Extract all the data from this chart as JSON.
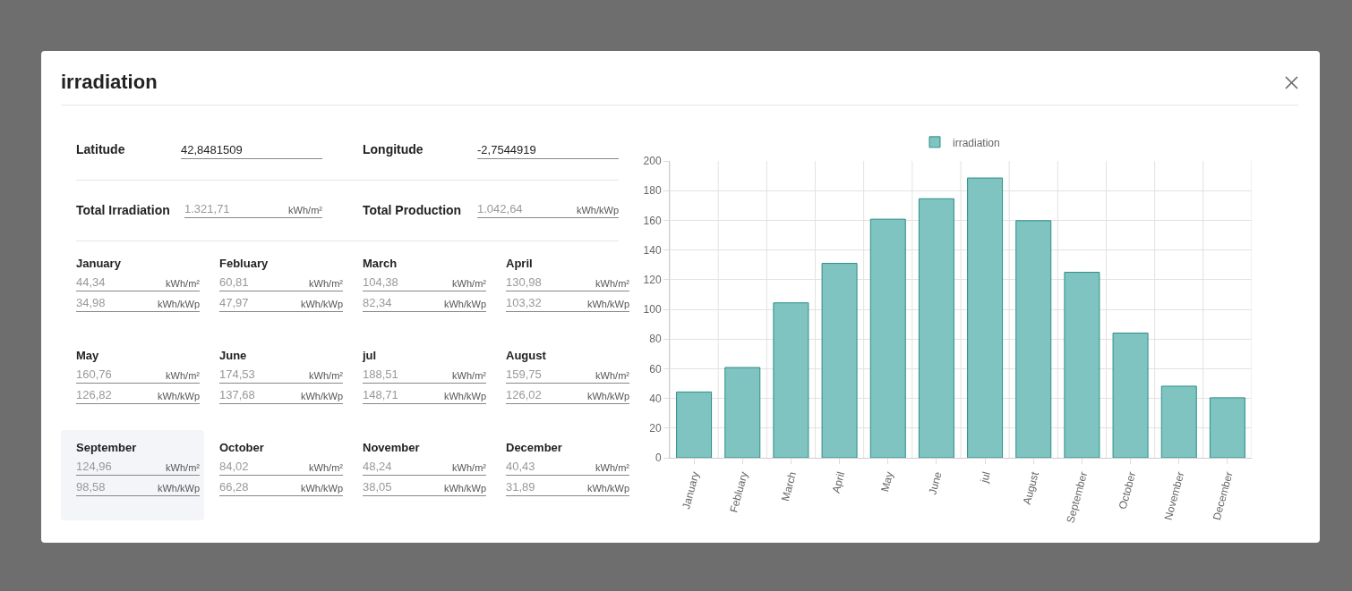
{
  "chart_data": [
    {
      "type": "other",
      "title": "irradiation",
      "annotations": [
        "Latitude",
        "42,8481509",
        "Longitude",
        "-2,7544919",
        "Total Irradiation",
        "1.321,71",
        "kWh/m²",
        "Total Production",
        "1.042,64",
        "kWh/kWp",
        "January",
        "44,34",
        "kWh/m²",
        "34,98",
        "kWh/kWp",
        "Febluary",
        "60,81",
        "kWh/m²",
        "47,97",
        "kWh/kWp",
        "March",
        "104,38",
        "kWh/m²",
        "82,34",
        "kWh/kWp",
        "April",
        "130,98",
        "kWh/m²",
        "103,32",
        "kWh/kWp",
        "May",
        "160,76",
        "kWh/m²",
        "126,82",
        "kWh/kWp",
        "June",
        "174,53",
        "kWh/m²",
        "137,68",
        "kWh/kWp",
        "jul",
        "188,51",
        "kWh/m²",
        "148,71",
        "kWh/kWp",
        "August",
        "159,75",
        "kWh/m²",
        "126,02",
        "kWh/kWp",
        "September",
        "124,96",
        "kWh/m²",
        "98,58",
        "kWh/kWp",
        "October",
        "84,02",
        "kWh/m²",
        "66,28",
        "kWh/kWp",
        "November",
        "48,24",
        "kWh/m²",
        "38,05",
        "kWh/kWp",
        "December",
        "40,43",
        "kWh/m²",
        "31,89",
        "kWh/kWp"
      ]
    },
    {
      "type": "bar",
      "categories": [
        "January",
        "Febluary",
        "March",
        "April",
        "May",
        "June",
        "jul",
        "August",
        "September",
        "October",
        "November",
        "December"
      ],
      "series": [
        {
          "name": "irradiation",
          "color": "#7fc4c0",
          "values": [
            44.34,
            60.81,
            104.38,
            130.98,
            160.76,
            174.53,
            188.51,
            159.75,
            124.96,
            84.02,
            48.24,
            40.43
          ]
        }
      ],
      "ylim": [
        0,
        200
      ],
      "yticks": [
        0,
        20,
        40,
        60,
        80,
        100,
        120,
        140,
        160,
        180,
        200
      ],
      "grid": true,
      "legend": "top"
    }
  ]
}
